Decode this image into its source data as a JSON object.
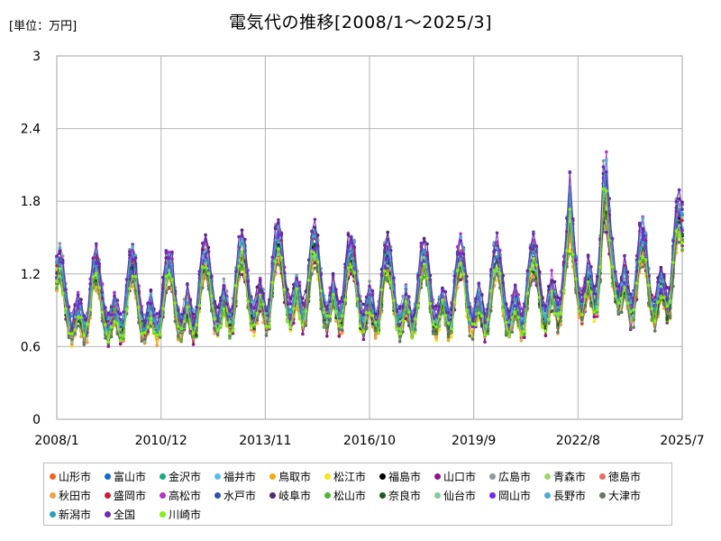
{
  "header": {
    "unit_label": "[単位：万円]",
    "title": "電気代の推移[2008/1～2025/3]"
  },
  "chart_data": {
    "type": "line",
    "title": "電気代の推移[2008/1～2025/3]",
    "unit": "[単位：万円]",
    "x_ticks": [
      "2008/1",
      "2010/12",
      "2013/11",
      "2016/10",
      "2019/9",
      "2022/8",
      "2025/7"
    ],
    "x_range": [
      "2008/1",
      "2025/7"
    ],
    "y_ticks": [
      "0",
      "0.6",
      "1.2",
      "1.8",
      "2.4",
      "3"
    ],
    "ylim": [
      0,
      3
    ],
    "grid": true,
    "legend_position": "bottom",
    "months": 207,
    "series": [
      {
        "name": "山形市",
        "color": "#f0641e"
      },
      {
        "name": "富山市",
        "color": "#1466d2"
      },
      {
        "name": "金沢市",
        "color": "#14aa82"
      },
      {
        "name": "福井市",
        "color": "#5ab9f0"
      },
      {
        "name": "鳥取市",
        "color": "#f0aa14"
      },
      {
        "name": "松江市",
        "color": "#f5e614"
      },
      {
        "name": "福島市",
        "color": "#000000"
      },
      {
        "name": "山口市",
        "color": "#8c148c"
      },
      {
        "name": "広島市",
        "color": "#8c9aa5"
      },
      {
        "name": "青森市",
        "color": "#a0d26e"
      },
      {
        "name": "徳島市",
        "color": "#e66e64"
      },
      {
        "name": "秋田市",
        "color": "#f5a046"
      },
      {
        "name": "盛岡市",
        "color": "#c81e32"
      },
      {
        "name": "高松市",
        "color": "#b432c8"
      },
      {
        "name": "水戸市",
        "color": "#3250b4"
      },
      {
        "name": "岐阜市",
        "color": "#50287a"
      },
      {
        "name": "松山市",
        "color": "#50b432"
      },
      {
        "name": "奈良市",
        "color": "#1e5a1e"
      },
      {
        "name": "仙台市",
        "color": "#82c8a0"
      },
      {
        "name": "岡山市",
        "color": "#7828e6"
      },
      {
        "name": "長野市",
        "color": "#50aad2"
      },
      {
        "name": "大津市",
        "color": "#647864"
      },
      {
        "name": "新潟市",
        "color": "#28a0be"
      },
      {
        "name": "全国",
        "color": "#6e28b4"
      },
      {
        "name": "川崎市",
        "color": "#82f014"
      }
    ]
  }
}
